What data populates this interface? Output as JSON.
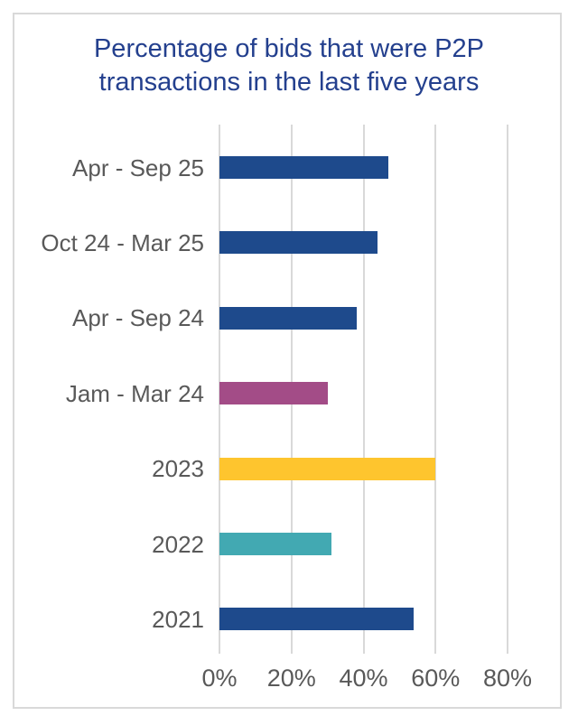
{
  "chart_data": {
    "type": "bar",
    "orientation": "horizontal",
    "title": "Percentage of bids that were P2P transactions in the last five years",
    "categories": [
      "Apr - Sep 25",
      "Oct 24 - Mar 25",
      "Apr - Sep 24",
      "Jam - Mar 24",
      "2023",
      "2022",
      "2021"
    ],
    "values": [
      47,
      44,
      38,
      30,
      60,
      31,
      54
    ],
    "unit": "%",
    "bar_colors": [
      "#1e4a8c",
      "#1e4a8c",
      "#1e4a8c",
      "#a34c87",
      "#fec52e",
      "#42a9b2",
      "#1e4a8c"
    ],
    "xlim": [
      0,
      80
    ],
    "x_tick_values": [
      0,
      20,
      40,
      60,
      80
    ],
    "x_tick_labels": [
      "0%",
      "20%",
      "40%",
      "60%",
      "80%"
    ],
    "grid": true,
    "legend": "none",
    "ylabel": "",
    "xlabel": ""
  },
  "colors": {
    "title_text": "#24408e",
    "axis_text": "#595959",
    "gridline": "#d9d9d9",
    "frame_border": "#d9d9d9",
    "background": "#ffffff"
  }
}
